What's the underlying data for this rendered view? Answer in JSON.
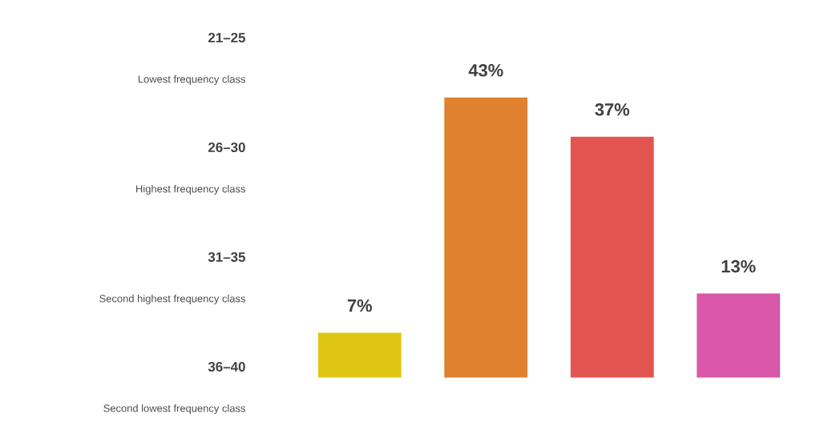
{
  "chart_data": {
    "type": "bar",
    "categories": [
      null,
      null,
      null,
      null
    ],
    "values": [
      7,
      43,
      37,
      13
    ],
    "colors": [
      "#dfc615",
      "#df812e",
      "#e25450",
      "#d957a9"
    ],
    "value_labels": [
      "7%",
      "43%",
      "37%",
      "13%"
    ],
    "annotations": [
      "21–25",
      "Lowest frequency class",
      "26–30",
      "Highest frequency class",
      "31–35",
      "Second highest frequency class",
      "36–40",
      "Second lowest frequency class"
    ]
  }
}
